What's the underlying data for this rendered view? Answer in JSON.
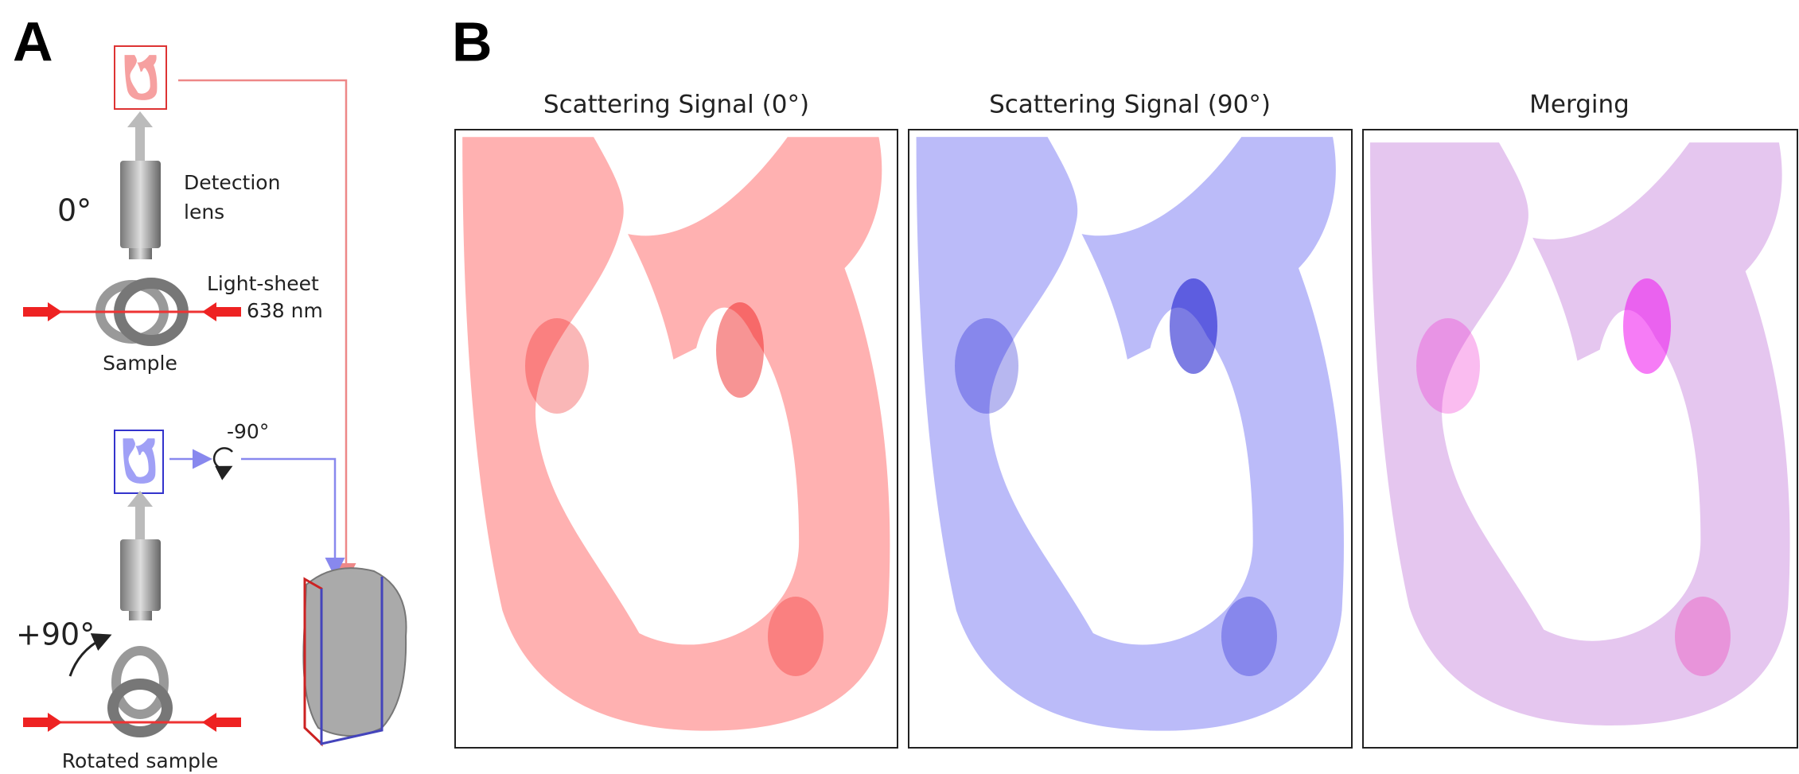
{
  "panel_a": {
    "label": "A",
    "detection": "Detection",
    "lens": "lens",
    "angle_0": "0°",
    "light_sheet": "Light-sheet",
    "wavelength": "638 nm",
    "sample": "Sample",
    "rotation_minus": "-90°",
    "rotation_plus": "+90°",
    "rotated_sample": "Rotated sample"
  },
  "panel_b": {
    "label": "B",
    "titles": [
      "Scattering Signal (0°)",
      "Scattering Signal (90°)",
      "Merging"
    ]
  }
}
